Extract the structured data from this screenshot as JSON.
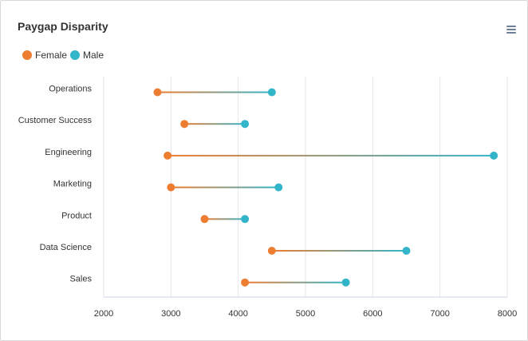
{
  "chart_data": {
    "type": "dumbbell",
    "title": "Paygap Disparity",
    "categories": [
      "Operations",
      "Customer Success",
      "Engineering",
      "Marketing",
      "Product",
      "Data Science",
      "Sales"
    ],
    "series": [
      {
        "name": "Female",
        "color": "#ed7d31",
        "values": [
          2800,
          3200,
          2950,
          3000,
          3500,
          4500,
          4100
        ]
      },
      {
        "name": "Male",
        "color": "#33b5c9",
        "values": [
          4500,
          4100,
          7800,
          4600,
          4100,
          6500,
          5600
        ]
      }
    ],
    "xlim": [
      2000,
      8000
    ],
    "xticks": [
      "2000",
      "3000",
      "4000",
      "5000",
      "6000",
      "7000",
      "8000"
    ],
    "xlabel": "",
    "ylabel": "",
    "grid": true,
    "legend_position": "top-left"
  },
  "toolbar": {
    "menu_icon": "hamburger-menu-icon"
  }
}
